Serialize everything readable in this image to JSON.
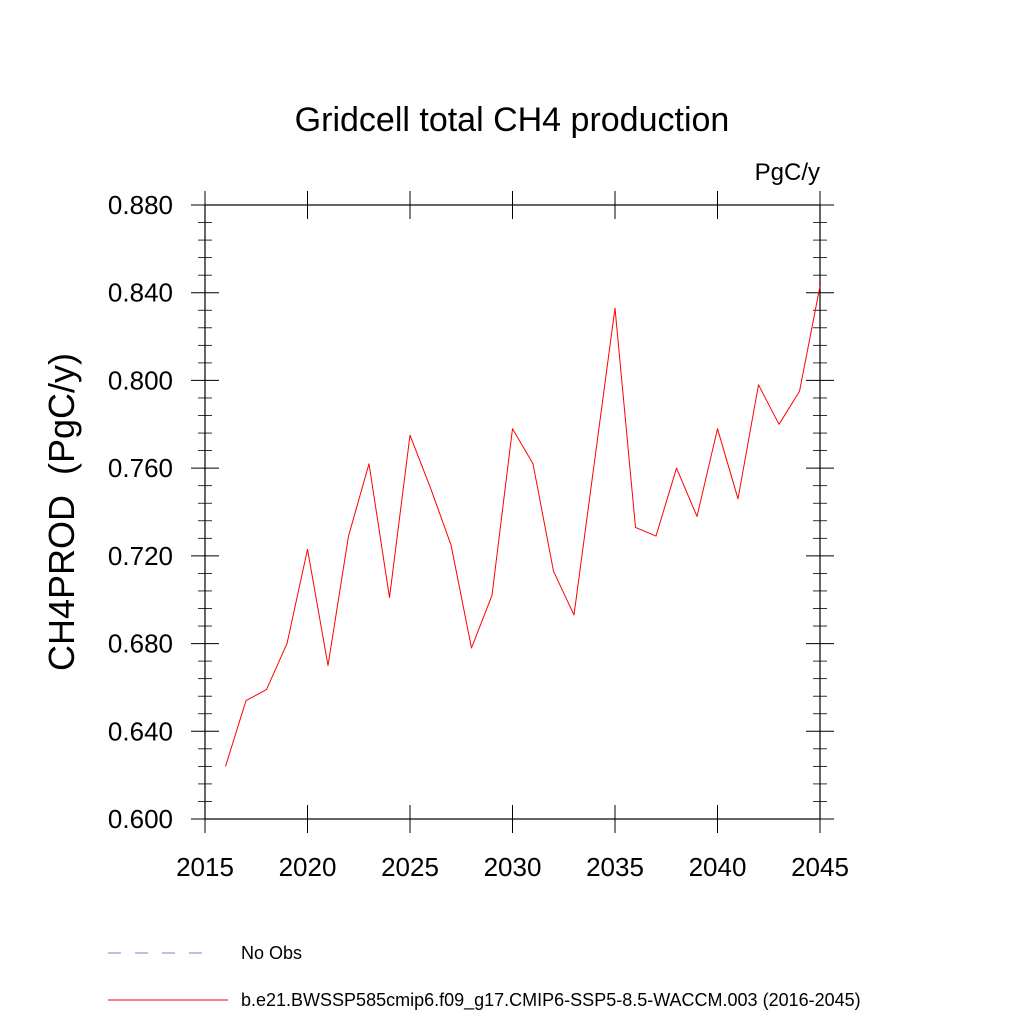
{
  "chart_data": {
    "type": "line",
    "title": "Gridcell total CH4 production",
    "units": "PgC/y",
    "ylabel": "CH4PROD  (PgC/y)",
    "xlabel": "",
    "xlim": [
      2015,
      2045
    ],
    "ylim": [
      0.6,
      0.88
    ],
    "x_ticks": [
      2015,
      2020,
      2025,
      2030,
      2035,
      2040,
      2045
    ],
    "x_tick_labels": [
      "2015",
      "2020",
      "2025",
      "2030",
      "2035",
      "2040",
      "2045"
    ],
    "y_ticks": [
      0.6,
      0.64,
      0.68,
      0.72,
      0.76,
      0.8,
      0.84,
      0.88
    ],
    "y_tick_labels": [
      "0.600",
      "0.640",
      "0.680",
      "0.720",
      "0.760",
      "0.800",
      "0.840",
      "0.880"
    ],
    "grid": false,
    "legend_position": "bottom",
    "series": [
      {
        "name": "b.e21.BWSSP585cmip6.f09_g17.CMIP6-SSP5-8.5-WACCM.003 (2016-2045)",
        "color": "#ff0000",
        "style": "solid",
        "x": [
          2016,
          2017,
          2018,
          2019,
          2020,
          2021,
          2022,
          2023,
          2024,
          2025,
          2026,
          2027,
          2028,
          2029,
          2030,
          2031,
          2032,
          2033,
          2034,
          2035,
          2036,
          2037,
          2038,
          2039,
          2040,
          2041,
          2042,
          2043,
          2044,
          2045
        ],
        "y": [
          0.624,
          0.654,
          0.659,
          0.68,
          0.723,
          0.67,
          0.729,
          0.762,
          0.701,
          0.775,
          0.751,
          0.725,
          0.678,
          0.702,
          0.778,
          0.762,
          0.713,
          0.693,
          0.763,
          0.833,
          0.733,
          0.729,
          0.76,
          0.738,
          0.778,
          0.746,
          0.798,
          0.78,
          0.795,
          0.843
        ]
      }
    ],
    "legend": [
      {
        "label": "No Obs",
        "color": "#7f7fbf",
        "style": "dashed"
      },
      {
        "label": "b.e21.BWSSP585cmip6.f09_g17.CMIP6-SSP5-8.5-WACCM.003 (2016-2045)",
        "color": "#ff0000",
        "style": "solid"
      }
    ]
  }
}
